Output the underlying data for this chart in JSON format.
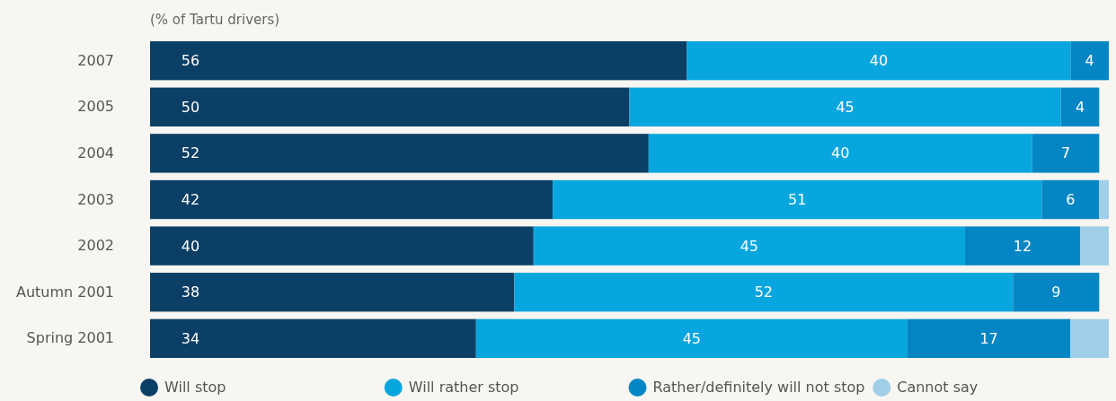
{
  "chart_data": {
    "type": "bar",
    "orientation": "horizontal",
    "stacked": true,
    "subtitle": "(% of Tartu drivers)",
    "categories": [
      "2007",
      "2005",
      "2004",
      "2003",
      "2002",
      "Autumn 2001",
      "Spring 2001"
    ],
    "series": [
      {
        "name": "Will stop",
        "color": "#0c3f66",
        "values": [
          56,
          50,
          52,
          42,
          40,
          38,
          34
        ],
        "value_labels": [
          "56",
          "50",
          "52",
          "42",
          "40",
          "38",
          "34"
        ]
      },
      {
        "name": "Will rather stop",
        "color": "#08a6de",
        "values": [
          40,
          45,
          40,
          51,
          45,
          52,
          45
        ],
        "value_labels": [
          "40",
          "45",
          "40",
          "51",
          "45",
          "52",
          "45"
        ]
      },
      {
        "name": "Rather/definitely will not stop",
        "color": "#0586c4",
        "values": [
          4,
          4,
          7,
          6,
          12,
          9,
          17
        ],
        "value_labels": [
          "4",
          "4",
          "7",
          "6",
          "12",
          "9",
          "17"
        ]
      },
      {
        "name": "Cannot say",
        "color": "#9fcfe8",
        "values": [
          null,
          null,
          null,
          1,
          3,
          null,
          4
        ],
        "value_labels": [
          null,
          null,
          null,
          null,
          null,
          null,
          null
        ]
      }
    ],
    "legend": "bottom"
  }
}
